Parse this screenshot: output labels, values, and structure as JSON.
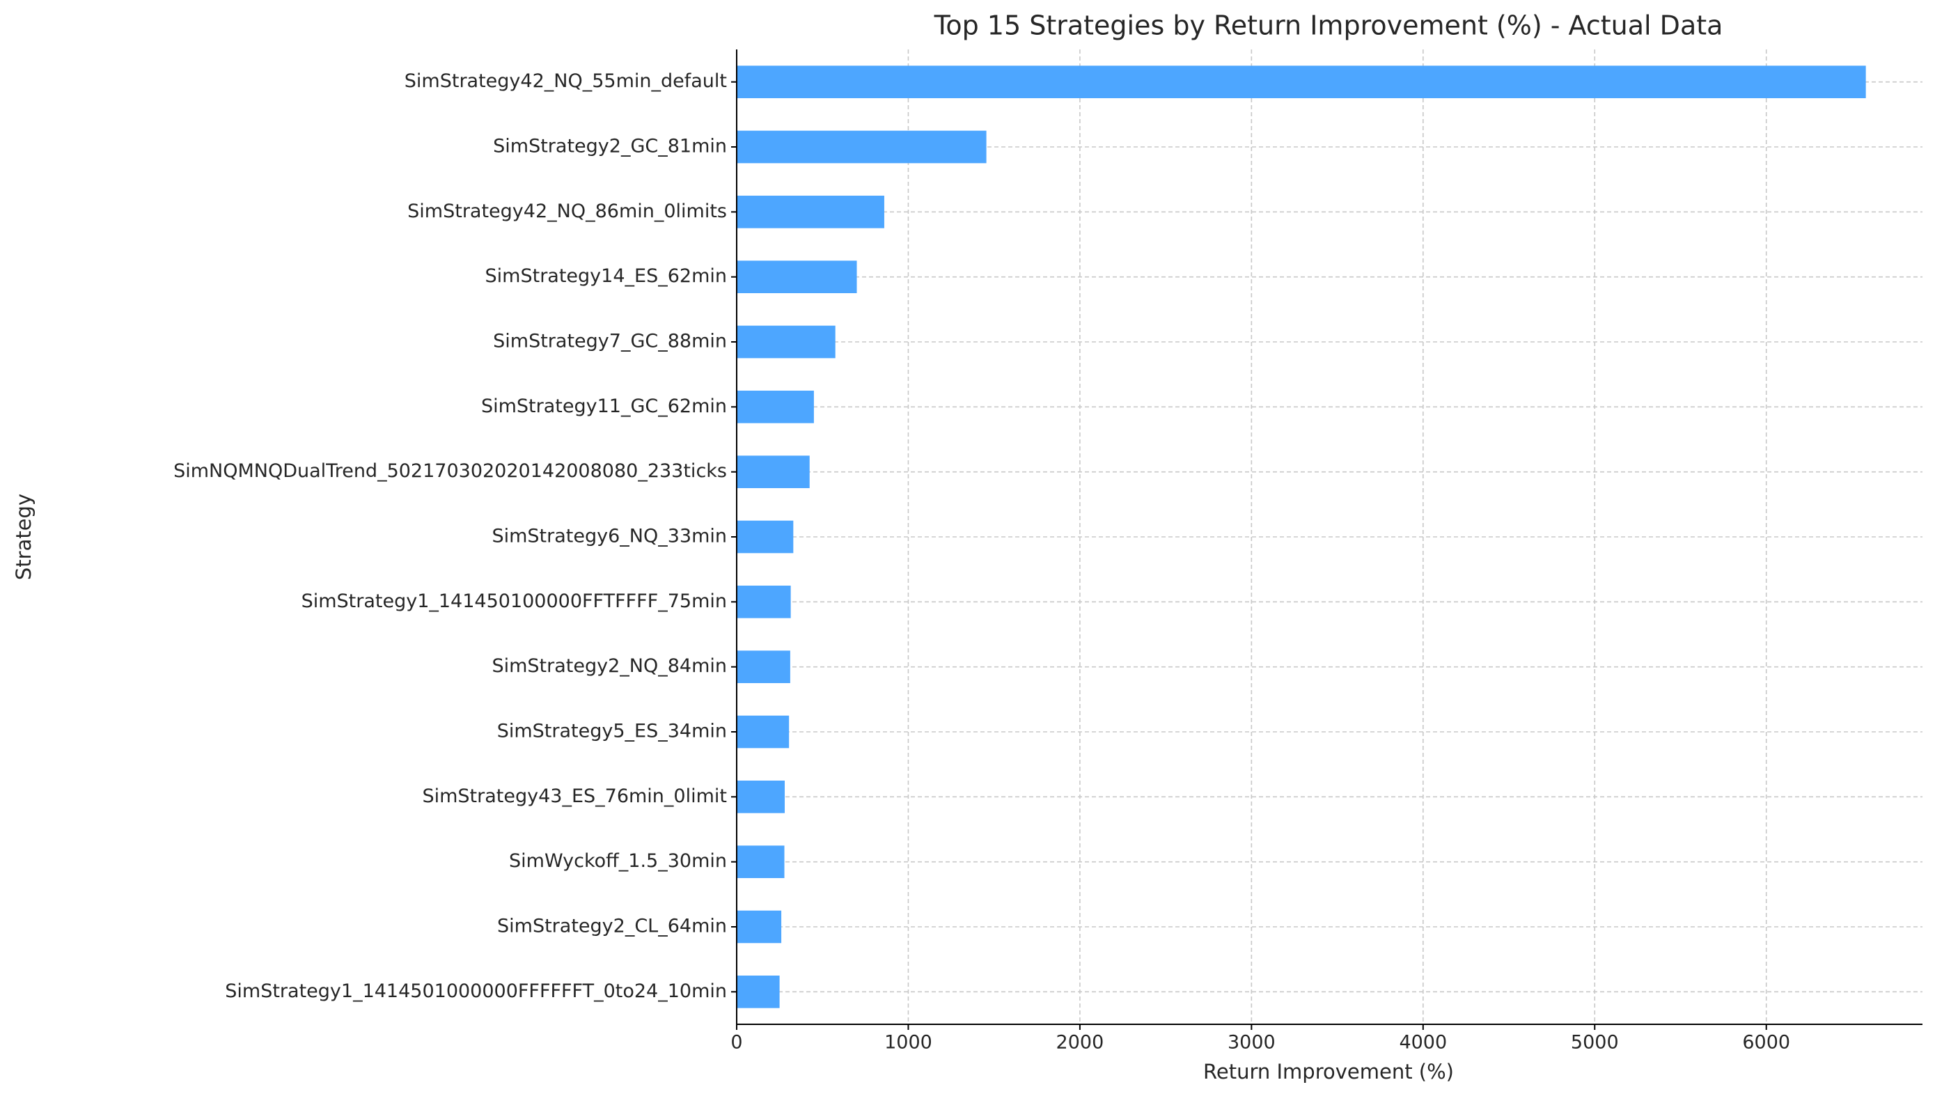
{
  "chart_data": {
    "type": "bar",
    "orientation": "horizontal",
    "title": "Top 15 Strategies by Return Improvement (%) - Actual Data",
    "x_label": "Return Improvement (%)",
    "y_label": "Strategy",
    "categories": [
      "SimStrategy42_NQ_55min_default",
      "SimStrategy2_GC_81min",
      "SimStrategy42_NQ_86min_0limits",
      "SimStrategy14_ES_62min",
      "SimStrategy7_GC_88min",
      "SimStrategy11_GC_62min",
      "SimNQMNQDualTrend_502170302020142008080_233ticks",
      "SimStrategy6_NQ_33min",
      "SimStrategy1_141450100000FFTFFFF_75min",
      "SimStrategy2_NQ_84min",
      "SimStrategy5_ES_34min",
      "SimStrategy43_ES_76min_0limit",
      "SimWyckoff_1.5_30min",
      "SimStrategy2_CL_64min",
      "SimStrategy1_1414501000000FFFFFFT_0to24_10min"
    ],
    "values": [
      6580,
      1455,
      860,
      700,
      575,
      450,
      425,
      330,
      315,
      312,
      305,
      280,
      278,
      260,
      250
    ],
    "color": "#4da6ff",
    "xlim": [
      0,
      6910
    ],
    "xticks": [
      0,
      1000,
      2000,
      3000,
      4000,
      5000,
      6000
    ],
    "grid": true
  }
}
